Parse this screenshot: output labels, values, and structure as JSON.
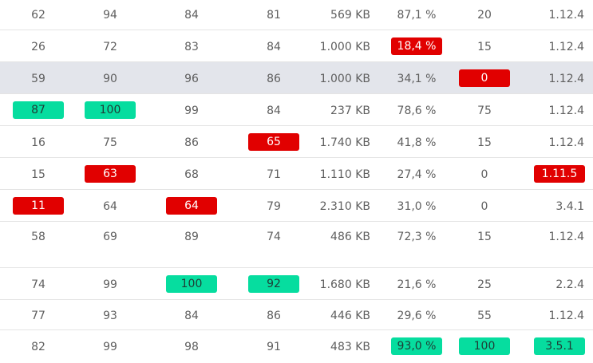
{
  "table": {
    "rows": [
      {
        "c1": "62",
        "c2": "94",
        "c3": "84",
        "c4": "81",
        "size": "569 KB",
        "pct": "87,1 %",
        "n": "20",
        "ver": "1.12.4"
      },
      {
        "c1": "26",
        "c2": "72",
        "c3": "83",
        "c4": "84",
        "size": "1.000 KB",
        "pct": "18,4 %",
        "n": "15",
        "ver": "1.12.4"
      },
      {
        "c1": "59",
        "c2": "90",
        "c3": "96",
        "c4": "86",
        "size": "1.000 KB",
        "pct": "34,1 %",
        "n": "0",
        "ver": "1.12.4"
      },
      {
        "c1": "87",
        "c2": "100",
        "c3": "99",
        "c4": "84",
        "size": "237 KB",
        "pct": "78,6 %",
        "n": "75",
        "ver": "1.12.4"
      },
      {
        "c1": "16",
        "c2": "75",
        "c3": "86",
        "c4": "65",
        "size": "1.740 KB",
        "pct": "41,8 %",
        "n": "15",
        "ver": "1.12.4"
      },
      {
        "c1": "15",
        "c2": "63",
        "c3": "68",
        "c4": "71",
        "size": "1.110 KB",
        "pct": "27,4 %",
        "n": "0",
        "ver": "1.11.5"
      },
      {
        "c1": "11",
        "c2": "64",
        "c3": "64",
        "c4": "79",
        "size": "2.310 KB",
        "pct": "31,0 %",
        "n": "0",
        "ver": "3.4.1"
      },
      {
        "c1": "58",
        "c2": "69",
        "c3": "89",
        "c4": "74",
        "size": "486 KB",
        "pct": "72,3 %",
        "n": "15",
        "ver": "1.12.4"
      },
      {
        "c1": "74",
        "c2": "99",
        "c3": "100",
        "c4": "92",
        "size": "1.680 KB",
        "pct": "21,6 %",
        "n": "25",
        "ver": "2.2.4"
      },
      {
        "c1": "77",
        "c2": "93",
        "c3": "84",
        "c4": "86",
        "size": "446 KB",
        "pct": "29,6 %",
        "n": "55",
        "ver": "1.12.4"
      },
      {
        "c1": "82",
        "c2": "99",
        "c3": "98",
        "c4": "91",
        "size": "483 KB",
        "pct": "93,0 %",
        "n": "100",
        "ver": "3.5.1"
      }
    ]
  },
  "colors": {
    "good": "#06dd9f",
    "bad": "#e10000",
    "selected_row": "#e3e5eb",
    "divider": "#e4e4e4"
  }
}
